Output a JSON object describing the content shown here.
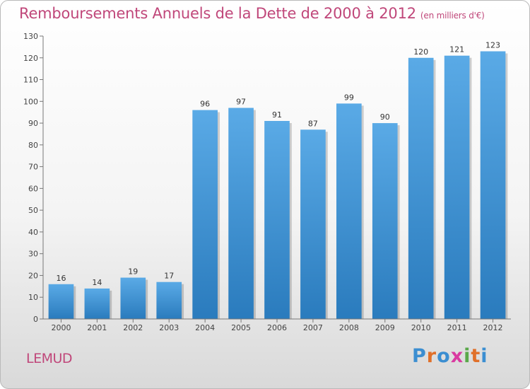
{
  "header": {
    "title": "Remboursements Annuels de la Dette de 2000 à 2012",
    "unit": "(en milliers d'€)"
  },
  "footer": {
    "commune": "LEMUD",
    "logo_letters": [
      "P",
      "r",
      "o",
      "x",
      "i",
      "t",
      "i"
    ],
    "logo_colors": [
      "#3b8ed1",
      "#e0702a",
      "#3b8ed1",
      "#d93aa0",
      "#5aa84a",
      "#e0702a",
      "#3b8ed1"
    ]
  },
  "chart_data": {
    "type": "bar",
    "categories": [
      "2000",
      "2001",
      "2002",
      "2003",
      "2004",
      "2005",
      "2006",
      "2007",
      "2008",
      "2009",
      "2010",
      "2011",
      "2012"
    ],
    "values": [
      16,
      14,
      19,
      17,
      96,
      97,
      91,
      87,
      99,
      90,
      120,
      121,
      123
    ],
    "ylim": [
      0,
      130
    ],
    "yticks": [
      0,
      10,
      20,
      30,
      40,
      50,
      60,
      70,
      80,
      90,
      100,
      110,
      120,
      130
    ],
    "grid": false,
    "bar_color_top": "#5aaae6",
    "bar_color_bottom": "#2a7bbd"
  }
}
